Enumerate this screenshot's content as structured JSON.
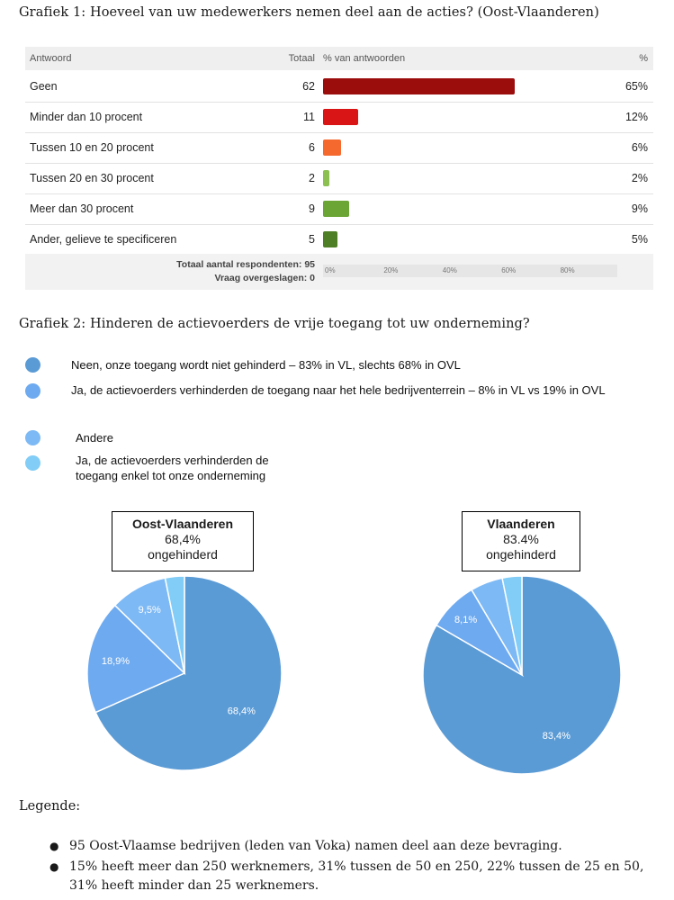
{
  "chart_data": [
    {
      "type": "bar",
      "title": "Grafiek 1: Hoeveel van uw medewerkers nemen deel aan de acties? (Oost-Vlaanderen)",
      "columns": [
        "Antwoord",
        "Totaal",
        "% van antwoorden",
        "%"
      ],
      "categories": [
        "Geen",
        "Minder dan 10 procent",
        "Tussen 10 en 20 procent",
        "Tussen 20 en 30 procent",
        "Meer dan 30 procent",
        "Ander, gelieve te specificeren"
      ],
      "totals": [
        62,
        11,
        6,
        2,
        9,
        5
      ],
      "values": [
        65,
        12,
        6,
        2,
        9,
        5
      ],
      "value_labels": [
        "65%",
        "12%",
        "6%",
        "2%",
        "9%",
        "5%"
      ],
      "colors": [
        "#9b0d0d",
        "#d91515",
        "#f5692f",
        "#8cc152",
        "#6aa535",
        "#4e7f26"
      ],
      "xlim": [
        0,
        100
      ],
      "ticks": [
        "0%",
        "20%",
        "40%",
        "60%",
        "80%"
      ],
      "footer": {
        "total_label": "Totaal aantal respondenten: 95",
        "skipped_label": "Vraag overgeslagen: 0"
      }
    },
    {
      "type": "pie",
      "title": "Oost-Vlaanderen",
      "summary_value": "68,4%",
      "summary_text": "ongehinderd",
      "values": [
        68.4,
        18.9,
        9.5,
        3.2
      ],
      "labels": [
        "68,4%",
        "18,9%",
        "9,5%",
        ""
      ],
      "colors": [
        "#5b9bd5",
        "#6eaaf0",
        "#7db9f5",
        "#82cdf7"
      ]
    },
    {
      "type": "pie",
      "title": "Vlaanderen",
      "summary_value": "83.4%",
      "summary_text": "ongehinderd",
      "values": [
        83.4,
        8.1,
        5.3,
        3.2
      ],
      "labels": [
        "83,4%",
        "8,1%",
        "",
        ""
      ],
      "colors": [
        "#5b9bd5",
        "#6eaaf0",
        "#7db9f5",
        "#82cdf7"
      ]
    }
  ],
  "grafiek2_title": "Grafiek 2: Hinderen de actievoerders de vrije toegang tot uw onderneming?",
  "legend": [
    {
      "text": "Neen, onze toegang wordt niet gehinderd – 83% in VL, slechts 68% in OVL",
      "color": "#5b9bd5"
    },
    {
      "text": "Ja, de actievoerders verhinderden de toegang naar het hele bedrijventerrein – 8% in VL vs 19% in OVL",
      "color": "#6eaaf0"
    },
    {
      "text": "Andere",
      "color": "#7db9f5"
    },
    {
      "text": "Ja, de actievoerders verhinderden de toegang enkel tot onze onderneming",
      "color": "#82cdf7"
    }
  ],
  "notes": {
    "title": "Legende:",
    "items": [
      "95 Oost-Vlaamse bedrijven (leden van Voka) namen deel aan deze bevraging.",
      "15% heeft meer dan 250 werknemers, 31% tussen de 50 en 250, 22% tussen de 25 en 50, 31% heeft minder dan 25 werknemers."
    ],
    "bullet": "●"
  }
}
